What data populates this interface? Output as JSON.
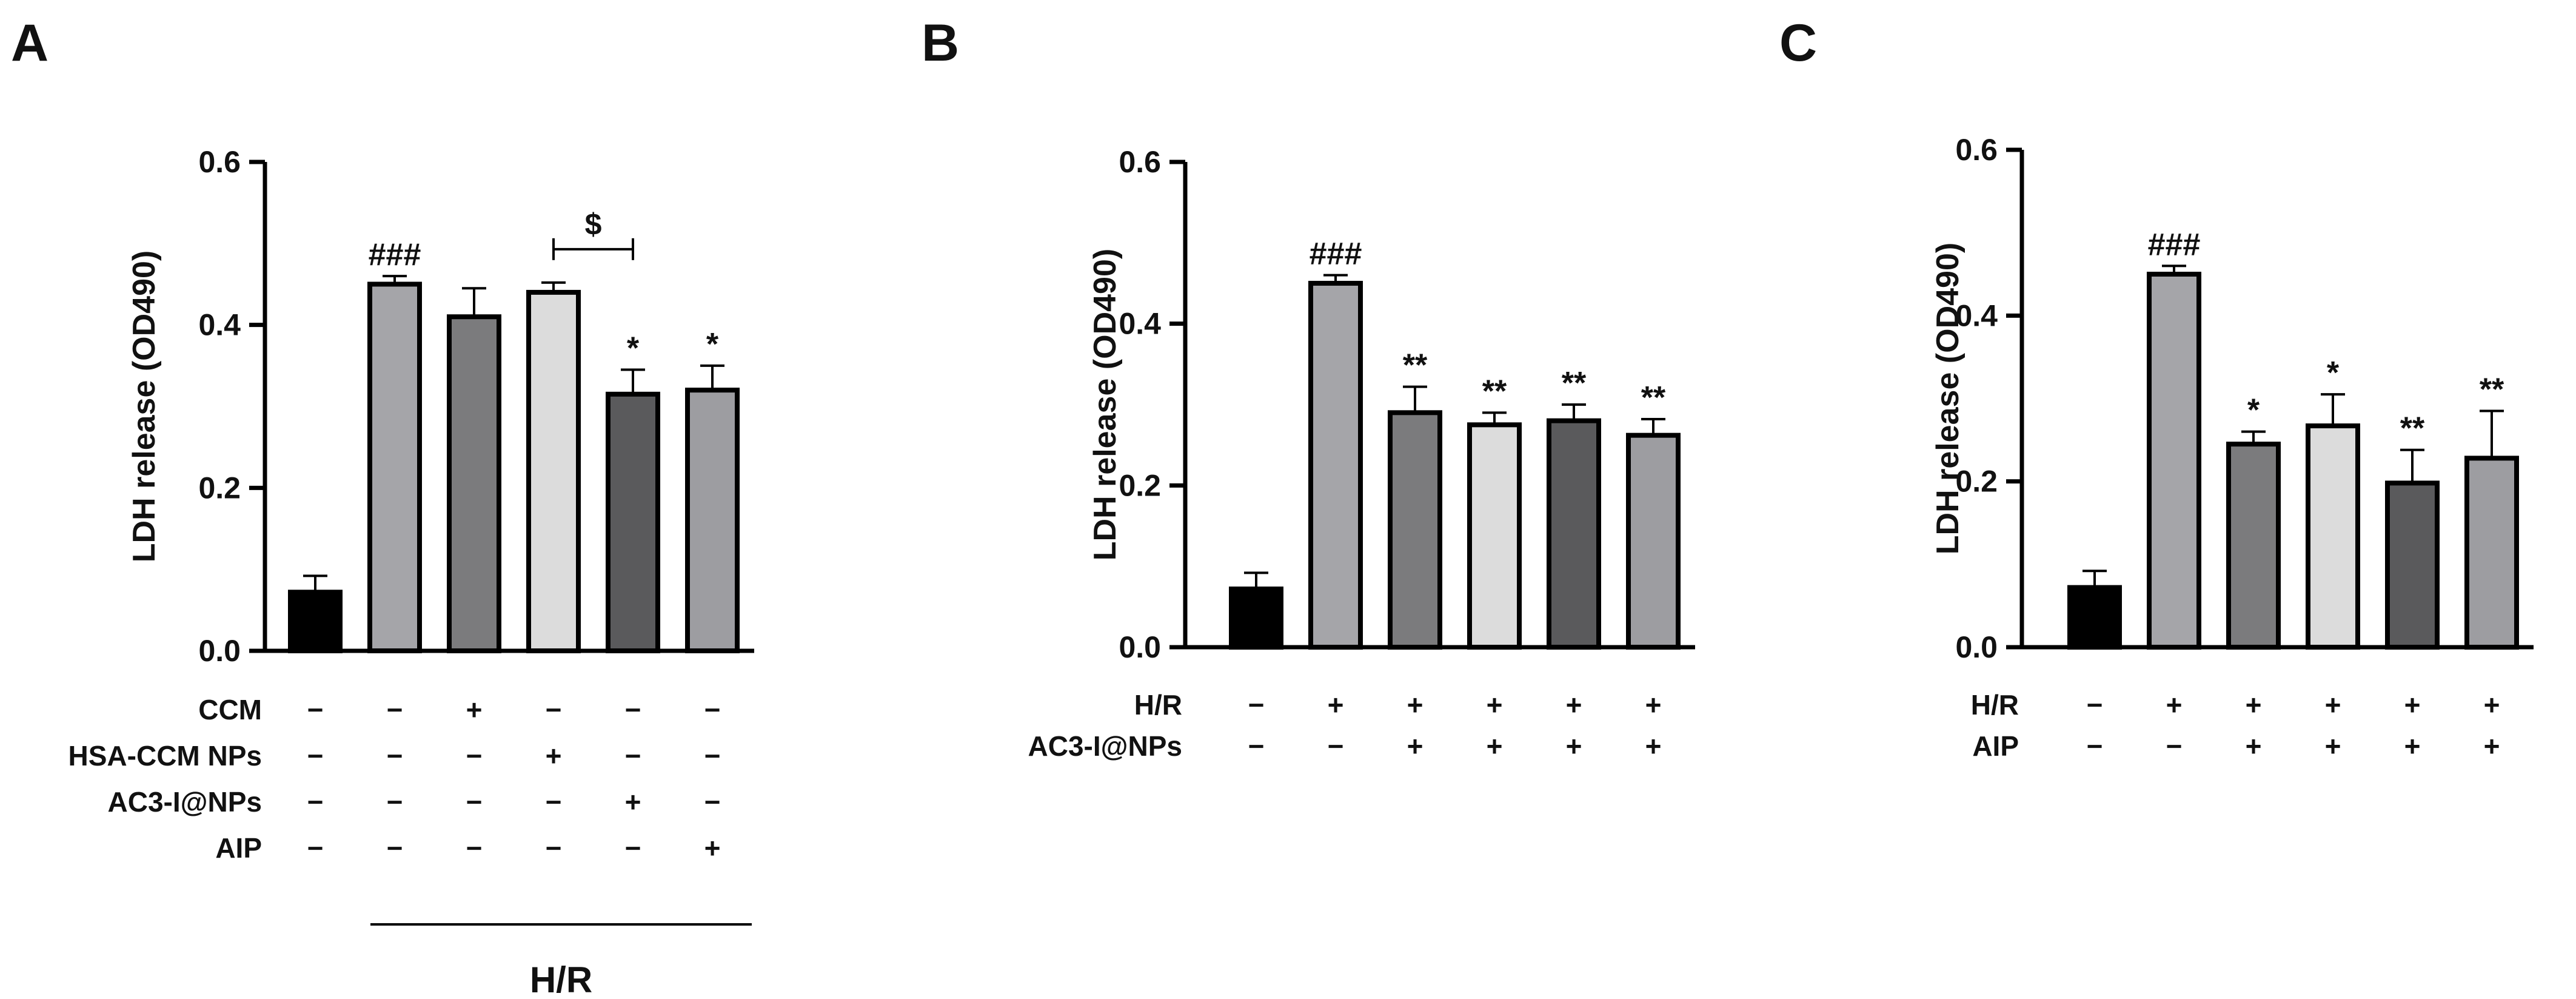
{
  "chart_data": [
    {
      "panel": "A",
      "type": "bar",
      "ylabel": "LDH release (OD490)",
      "ylim": [
        0,
        0.6
      ],
      "yticks": [
        "0.0",
        "0.2",
        "0.4",
        "0.6"
      ],
      "colors": [
        "#000000",
        "#a5a5a9",
        "#7b7b7d",
        "#dcdcdc",
        "#5a5a5c",
        "#9d9da1"
      ],
      "values": [
        0.072,
        0.45,
        0.41,
        0.44,
        0.315,
        0.32
      ],
      "errors": [
        0.02,
        0.01,
        0.035,
        0.012,
        0.03,
        0.03
      ],
      "marks": [
        "",
        "###",
        "",
        "",
        "*",
        "*"
      ],
      "conditions": [
        {
          "label": "CCM",
          "signs": [
            "−",
            "−",
            "+",
            "−",
            "−",
            "−"
          ]
        },
        {
          "label": "HSA-CCM NPs",
          "signs": [
            "−",
            "−",
            "−",
            "+",
            "−",
            "−"
          ]
        },
        {
          "label": "AC3-I@NPs",
          "signs": [
            "−",
            "−",
            "−",
            "−",
            "+",
            "−"
          ]
        },
        {
          "label": "AIP",
          "signs": [
            "−",
            "−",
            "−",
            "−",
            "−",
            "+"
          ]
        }
      ],
      "bracket": {
        "from": 3,
        "to": 4,
        "label": "$"
      },
      "group_label": "H/R"
    },
    {
      "panel": "B",
      "type": "bar",
      "ylabel": "LDH release (OD490)",
      "ylim": [
        0,
        0.6
      ],
      "yticks": [
        "0.0",
        "0.2",
        "0.4",
        "0.6"
      ],
      "colors": [
        "#000000",
        "#a5a5a9",
        "#7b7b7d",
        "#dcdcdc",
        "#5a5a5c",
        "#9d9da1"
      ],
      "values": [
        0.072,
        0.45,
        0.29,
        0.275,
        0.28,
        0.262
      ],
      "errors": [
        0.02,
        0.01,
        0.032,
        0.015,
        0.02,
        0.02
      ],
      "marks": [
        "",
        "###",
        "**",
        "**",
        "**",
        "**"
      ],
      "conditions": [
        {
          "label": "H/R",
          "signs": [
            "−",
            "+",
            "+",
            "+",
            "+",
            "+"
          ]
        },
        {
          "label": "AC3-I@NPs",
          "signs": [
            "−",
            "−",
            "+",
            "+",
            "+",
            "+"
          ]
        }
      ]
    },
    {
      "panel": "C",
      "type": "bar",
      "ylabel": "LDH release (OD490)",
      "ylim": [
        0,
        0.6
      ],
      "yticks": [
        "0.0",
        "0.2",
        "0.4",
        "0.6"
      ],
      "colors": [
        "#000000",
        "#a5a5a9",
        "#7b7b7d",
        "#dcdcdc",
        "#5a5a5c",
        "#9d9da1"
      ],
      "values": [
        0.072,
        0.45,
        0.245,
        0.267,
        0.198,
        0.228
      ],
      "errors": [
        0.02,
        0.01,
        0.015,
        0.038,
        0.04,
        0.057
      ],
      "marks": [
        "",
        "###",
        "*",
        "*",
        "**",
        "**"
      ],
      "conditions": [
        {
          "label": "H/R",
          "signs": [
            "−",
            "+",
            "+",
            "+",
            "+",
            "+"
          ]
        },
        {
          "label": "AIP",
          "signs": [
            "−",
            "−",
            "+",
            "+",
            "+",
            "+"
          ]
        }
      ]
    }
  ]
}
